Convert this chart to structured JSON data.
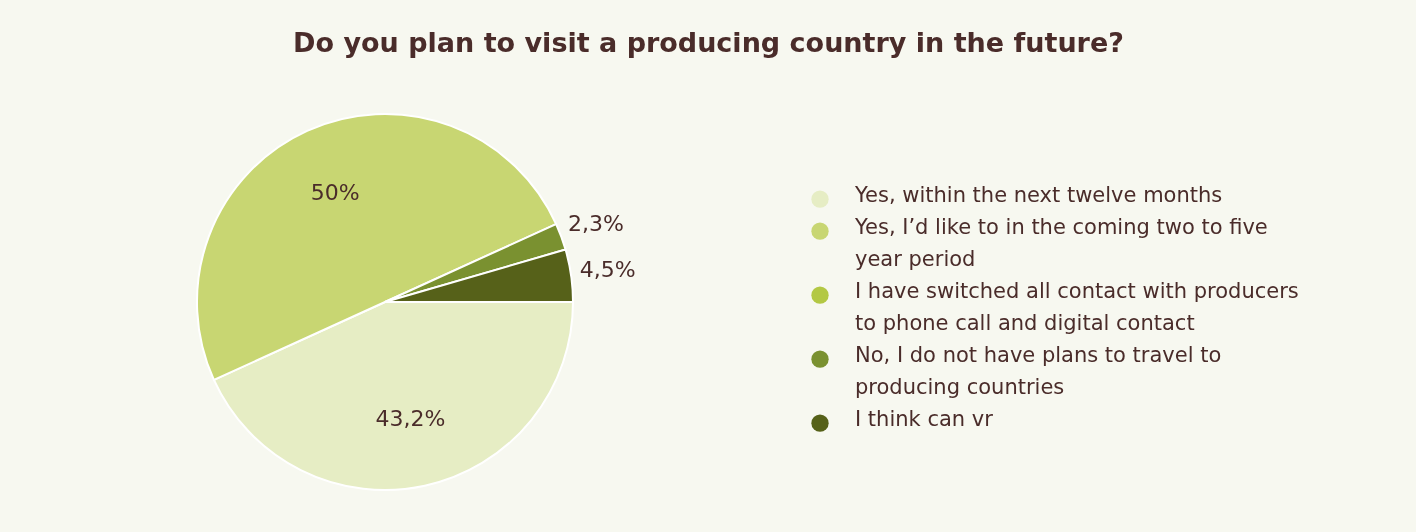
{
  "chart_data": {
    "type": "pie",
    "title": "Do you plan to visit a producing country in the future?",
    "categories": [
      "Yes, within the next twelve months",
      "Yes, I’d like to in the coming two to five year period",
      "I have switched all contact with producers to phone call and digital contact",
      "No, I do not have plans to travel to producing countries",
      "I think can vr"
    ],
    "values": [
      43.2,
      50,
      0,
      2.3,
      4.5
    ],
    "value_labels": [
      "43,2%",
      "50%",
      null,
      "2,3%",
      "4,5%"
    ],
    "colors": [
      "#e6edc4",
      "#c8d672",
      "#b3c844",
      "#7a9130",
      "#566119"
    ],
    "legend": "right"
  }
}
